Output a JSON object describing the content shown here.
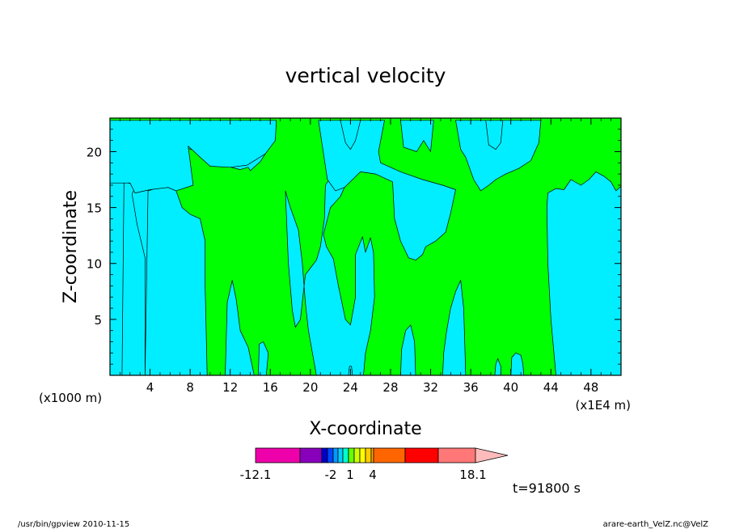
{
  "chart_data": {
    "type": "heatmap",
    "title": "vertical velocity",
    "xlabel": "X-coordinate",
    "ylabel": "Z-coordinate",
    "x_unit_left": "(x1000 m)",
    "x_unit_right": "(x1E4 m)",
    "xlim": [
      0,
      51
    ],
    "ylim": [
      0,
      23
    ],
    "x_ticks": [
      4,
      8,
      12,
      16,
      20,
      24,
      28,
      32,
      36,
      40,
      44,
      48
    ],
    "y_ticks": [
      5,
      10,
      15,
      20
    ],
    "time_label": "t=91800 s",
    "colors": {
      "positive": "#00ff00",
      "negative": "#00eeff",
      "outline": "#000000"
    },
    "colorbar": {
      "labels": [
        "-12.1",
        "-2",
        "1",
        "4",
        "18.1"
      ],
      "segments": [
        "#ee00aa",
        "#8800bb",
        "#0000cc",
        "#0044ff",
        "#0099ff",
        "#00ccff",
        "#00ffcc",
        "#66ff00",
        "#ccff00",
        "#ffff00",
        "#ffcc00",
        "#ffaa00",
        "#ff6600",
        "#ff0000",
        "#ff7777",
        "#ffbbbb"
      ]
    },
    "negative_regions": [
      [
        [
          1.1,
          0
        ],
        [
          1.4,
          17.3
        ],
        [
          2.2,
          17.1
        ],
        [
          2.5,
          16.2
        ],
        [
          3.2,
          16.3
        ],
        [
          4.5,
          16.7
        ],
        [
          5.8,
          16.8
        ],
        [
          6.6,
          16.5
        ],
        [
          7.2,
          15.0
        ],
        [
          8.0,
          14.4
        ],
        [
          9.0,
          14.0
        ],
        [
          9.5,
          12.0
        ],
        [
          9.5,
          8.0
        ],
        [
          9.7,
          0
        ]
      ],
      [
        [
          3.5,
          0
        ],
        [
          3.5,
          10.5
        ],
        [
          2.7,
          13.5
        ],
        [
          2.2,
          16.2
        ],
        [
          2.5,
          16.8
        ],
        [
          3.3,
          17.0
        ],
        [
          3.8,
          16.6
        ]
      ],
      [
        [
          0,
          17.2
        ],
        [
          1.0,
          17.4
        ],
        [
          1.4,
          17.2
        ],
        [
          1.2,
          0
        ],
        [
          0,
          0
        ]
      ],
      [
        [
          11.5,
          0
        ],
        [
          11.7,
          6.5
        ],
        [
          12.2,
          8.5
        ],
        [
          12.6,
          6.8
        ],
        [
          13.0,
          4.0
        ],
        [
          13.8,
          2.5
        ],
        [
          14.4,
          0
        ]
      ],
      [
        [
          10.3,
          19.5
        ],
        [
          11.2,
          18.8
        ],
        [
          13.0,
          18.4
        ],
        [
          13.8,
          18.6
        ],
        [
          14.0,
          18.3
        ],
        [
          15.0,
          19.1
        ],
        [
          16.0,
          20.5
        ],
        [
          16.6,
          22.8
        ],
        [
          0,
          22.8
        ],
        [
          0,
          22.8
        ]
      ],
      [
        [
          0,
          22.8
        ],
        [
          16.6,
          22.8
        ],
        [
          16.5,
          21.0
        ],
        [
          15.5,
          19.8
        ],
        [
          13.7,
          18.8
        ],
        [
          12.0,
          18.6
        ],
        [
          10.0,
          18.7
        ],
        [
          9.0,
          19.5
        ],
        [
          7.8,
          20.5
        ],
        [
          8.3,
          17.0
        ],
        [
          6.6,
          16.5
        ],
        [
          5.8,
          16.8
        ],
        [
          4.0,
          16.6
        ],
        [
          2.5,
          16.3
        ],
        [
          2.0,
          17.2
        ],
        [
          0,
          17.2
        ]
      ],
      [
        [
          14.8,
          0
        ],
        [
          14.9,
          2.8
        ],
        [
          15.3,
          3.0
        ],
        [
          15.8,
          2.0
        ],
        [
          15.6,
          0
        ]
      ],
      [
        [
          17.5,
          16.5
        ],
        [
          17.8,
          10.0
        ],
        [
          18.2,
          5.8
        ],
        [
          18.5,
          4.3
        ],
        [
          19.0,
          5.0
        ],
        [
          19.5,
          9.0
        ],
        [
          20.6,
          10.3
        ],
        [
          21.0,
          11.5
        ],
        [
          21.4,
          14.0
        ],
        [
          21.5,
          17.0
        ],
        [
          22.2,
          18.0
        ],
        [
          23.0,
          17.3
        ],
        [
          23.4,
          16.8
        ],
        [
          23.0,
          16.0
        ],
        [
          22.0,
          15.0
        ],
        [
          21.3,
          12.6
        ],
        [
          21.6,
          11.5
        ],
        [
          22.3,
          10.4
        ],
        [
          22.8,
          8.0
        ],
        [
          23.5,
          5.0
        ],
        [
          24.0,
          4.5
        ],
        [
          24.5,
          7.0
        ],
        [
          24.5,
          10.8
        ],
        [
          25.2,
          12.4
        ],
        [
          25.5,
          11.0
        ],
        [
          26.0,
          12.3
        ],
        [
          26.3,
          11.0
        ],
        [
          26.4,
          7.0
        ],
        [
          26.0,
          4.0
        ],
        [
          25.5,
          2.0
        ],
        [
          25.3,
          0
        ],
        [
          20.6,
          0
        ],
        [
          19.8,
          4.0
        ],
        [
          19.5,
          6.5
        ],
        [
          19.2,
          10.0
        ],
        [
          18.8,
          13.0
        ],
        [
          18.0,
          15.0
        ]
      ],
      [
        [
          20.8,
          22.8
        ],
        [
          21.7,
          17.5
        ],
        [
          22.5,
          16.5
        ],
        [
          23.4,
          16.8
        ],
        [
          25.0,
          18.2
        ],
        [
          26.5,
          18.0
        ],
        [
          28.2,
          17.3
        ],
        [
          28.4,
          14.0
        ],
        [
          29.0,
          12.0
        ],
        [
          29.8,
          10.5
        ],
        [
          30.5,
          10.3
        ],
        [
          31.2,
          10.8
        ],
        [
          31.5,
          11.5
        ],
        [
          32.5,
          12.0
        ],
        [
          33.5,
          12.8
        ],
        [
          34.0,
          14.5
        ],
        [
          34.5,
          16.6
        ],
        [
          33.2,
          17.0
        ],
        [
          31.2,
          17.5
        ],
        [
          29.0,
          18.2
        ],
        [
          27.0,
          19.0
        ],
        [
          26.8,
          20.0
        ],
        [
          27.4,
          22.8
        ]
      ],
      [
        [
          29.0,
          22.8
        ],
        [
          29.3,
          20.4
        ],
        [
          30.6,
          20.0
        ],
        [
          31.3,
          21.0
        ],
        [
          32.0,
          20.0
        ],
        [
          32.3,
          22.8
        ]
      ],
      [
        [
          23.0,
          22.8
        ],
        [
          23.5,
          20.8
        ],
        [
          24.0,
          20.2
        ],
        [
          24.5,
          21.0
        ],
        [
          25.0,
          22.8
        ]
      ],
      [
        [
          34.5,
          22.8
        ],
        [
          35.0,
          20.2
        ],
        [
          35.5,
          19.5
        ],
        [
          36.3,
          17.5
        ],
        [
          37.0,
          16.5
        ],
        [
          37.8,
          17.0
        ],
        [
          38.5,
          17.5
        ],
        [
          39.5,
          18.0
        ],
        [
          40.8,
          18.5
        ],
        [
          42.0,
          19.2
        ],
        [
          42.8,
          20.8
        ],
        [
          43.0,
          22.8
        ]
      ],
      [
        [
          37.5,
          22.8
        ],
        [
          37.8,
          20.6
        ],
        [
          38.5,
          20.2
        ],
        [
          39.0,
          20.8
        ],
        [
          39.2,
          22.8
        ]
      ],
      [
        [
          29.0,
          0
        ],
        [
          29.1,
          2.3
        ],
        [
          29.5,
          4.0
        ],
        [
          30.0,
          4.5
        ],
        [
          30.4,
          3.0
        ],
        [
          30.5,
          0
        ]
      ],
      [
        [
          38.4,
          0
        ],
        [
          38.5,
          1.0
        ],
        [
          38.7,
          1.5
        ],
        [
          39.0,
          0.8
        ],
        [
          39.0,
          0
        ]
      ],
      [
        [
          40.0,
          0
        ],
        [
          40.1,
          1.6
        ],
        [
          40.5,
          2.0
        ],
        [
          41.0,
          1.8
        ],
        [
          41.2,
          1.0
        ],
        [
          41.3,
          0
        ]
      ],
      [
        [
          44.5,
          0
        ],
        [
          44.0,
          5.0
        ],
        [
          43.7,
          10.0
        ],
        [
          43.6,
          15.0
        ],
        [
          43.7,
          16.3
        ],
        [
          44.5,
          16.7
        ],
        [
          45.3,
          16.6
        ],
        [
          46.0,
          17.5
        ],
        [
          47.0,
          17.0
        ],
        [
          47.8,
          17.5
        ],
        [
          48.5,
          18.2
        ],
        [
          49.3,
          17.8
        ],
        [
          50.0,
          17.3
        ],
        [
          50.5,
          16.5
        ],
        [
          51,
          16.9
        ],
        [
          51,
          0
        ]
      ],
      [
        [
          23.8,
          0
        ],
        [
          23.9,
          0.8
        ],
        [
          24.1,
          0.8
        ],
        [
          24.2,
          0
        ]
      ],
      [
        [
          33.2,
          0
        ],
        [
          33.3,
          2.0
        ],
        [
          33.6,
          4.0
        ],
        [
          34.0,
          6.0
        ],
        [
          34.5,
          7.5
        ],
        [
          35.0,
          8.5
        ],
        [
          35.3,
          6.0
        ],
        [
          35.4,
          3.0
        ],
        [
          35.5,
          0
        ]
      ]
    ]
  },
  "footer": {
    "left": "/usr/bin/gpview  2010-11-15",
    "right": "arare-earth_VelZ.nc@VelZ"
  }
}
